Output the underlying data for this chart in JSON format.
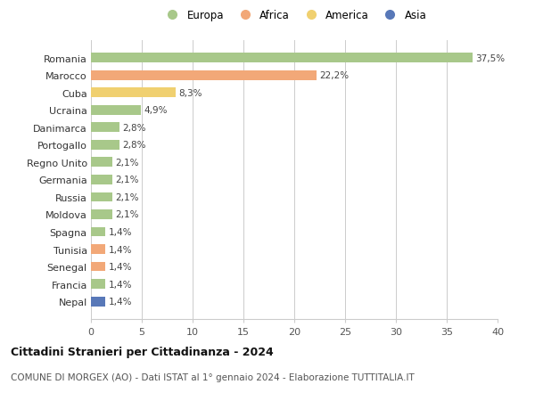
{
  "countries": [
    "Romania",
    "Marocco",
    "Cuba",
    "Ucraina",
    "Danimarca",
    "Portogallo",
    "Regno Unito",
    "Germania",
    "Russia",
    "Moldova",
    "Spagna",
    "Tunisia",
    "Senegal",
    "Francia",
    "Nepal"
  ],
  "values": [
    37.5,
    22.2,
    8.3,
    4.9,
    2.8,
    2.8,
    2.1,
    2.1,
    2.1,
    2.1,
    1.4,
    1.4,
    1.4,
    1.4,
    1.4
  ],
  "labels": [
    "37,5%",
    "22,2%",
    "8,3%",
    "4,9%",
    "2,8%",
    "2,8%",
    "2,1%",
    "2,1%",
    "2,1%",
    "2,1%",
    "1,4%",
    "1,4%",
    "1,4%",
    "1,4%",
    "1,4%"
  ],
  "continents": [
    "Europa",
    "Africa",
    "America",
    "Europa",
    "Europa",
    "Europa",
    "Europa",
    "Europa",
    "Europa",
    "Europa",
    "Europa",
    "Africa",
    "Africa",
    "Europa",
    "Asia"
  ],
  "colors": {
    "Europa": "#a8c88a",
    "Africa": "#f2a878",
    "America": "#f0d070",
    "Asia": "#5878b8"
  },
  "title": "Cittadini Stranieri per Cittadinanza - 2024",
  "subtitle": "COMUNE DI MORGEX (AO) - Dati ISTAT al 1° gennaio 2024 - Elaborazione TUTTITALIA.IT",
  "xlim": [
    0,
    40
  ],
  "xticks": [
    0,
    5,
    10,
    15,
    20,
    25,
    30,
    35,
    40
  ],
  "background_color": "#ffffff",
  "grid_color": "#cccccc"
}
